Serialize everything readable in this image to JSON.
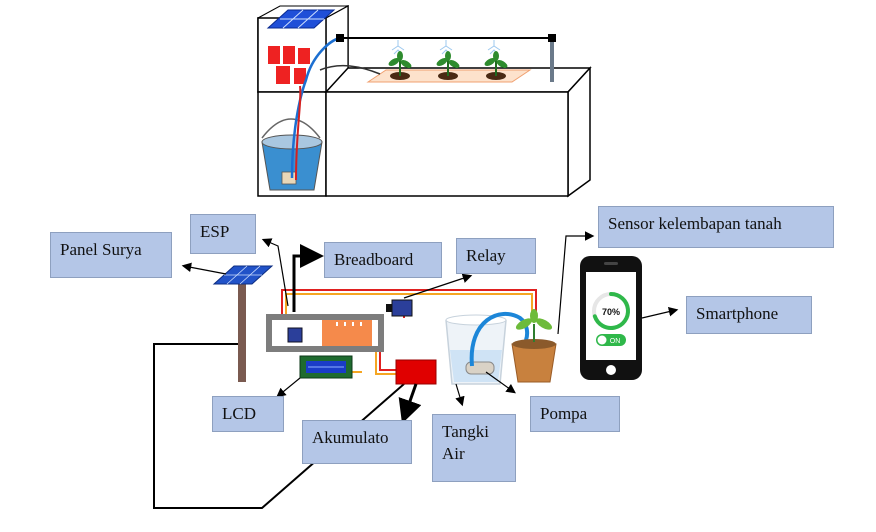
{
  "labels": {
    "panel_surya": "Panel Surya",
    "esp": "ESP",
    "breadboard": "Breadboard",
    "relay": "Relay",
    "sensor": "Sensor kelembapan tanah",
    "smartphone": "Smartphone",
    "lcd": "LCD",
    "akumulator": "Akumulato",
    "tangki_air": "Tangki Air",
    "pompa": "Pompa"
  },
  "phone": {
    "moisture_percent": 70,
    "moisture_text": "70%",
    "toggle_text": "ON"
  },
  "colors": {
    "label_fill": "#b4c6e7",
    "wire_red": "#e02020",
    "wire_orange": "#f5a623",
    "accumulator": "#e00000",
    "breadboard_orange": "#f58a4b",
    "gauge_green": "#2fb84a"
  }
}
